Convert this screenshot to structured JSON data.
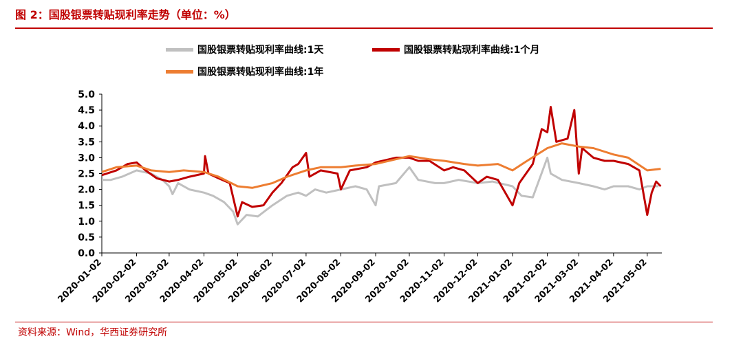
{
  "figure": {
    "title": "图 2：国股银票转贴现利率走势（单位：%）",
    "source": "资料来源：Wind，华西证券研究所"
  },
  "chart_data": {
    "type": "line",
    "title": "",
    "xlabel": "",
    "ylabel": "",
    "ylim": [
      0.0,
      5.0
    ],
    "yticks": [
      "0.0",
      "0.5",
      "1.0",
      "1.5",
      "2.0",
      "2.5",
      "3.0",
      "3.5",
      "4.0",
      "4.5",
      "5.0"
    ],
    "xticks": [
      "2020-01-02",
      "2020-02-02",
      "2020-03-02",
      "2020-04-02",
      "2020-05-02",
      "2020-06-02",
      "2020-07-02",
      "2020-08-02",
      "2020-09-02",
      "2020-10-02",
      "2020-11-02",
      "2020-12-02",
      "2021-01-02",
      "2021-02-02",
      "2021-03-02",
      "2021-04-02",
      "2021-05-02"
    ],
    "legend_position": "top-left",
    "grid": false,
    "series": [
      {
        "name": "国股银票转贴现利率曲线:1天",
        "color": "#c0c0c0",
        "points": [
          [
            "2020-01-02",
            2.3
          ],
          [
            "2020-01-10",
            2.3
          ],
          [
            "2020-01-20",
            2.4
          ],
          [
            "2020-02-02",
            2.6
          ],
          [
            "2020-02-15",
            2.5
          ],
          [
            "2020-02-25",
            2.3
          ],
          [
            "2020-03-02",
            2.1
          ],
          [
            "2020-03-05",
            1.85
          ],
          [
            "2020-03-10",
            2.2
          ],
          [
            "2020-03-20",
            2.0
          ],
          [
            "2020-04-02",
            1.9
          ],
          [
            "2020-04-10",
            1.8
          ],
          [
            "2020-04-20",
            1.6
          ],
          [
            "2020-04-28",
            1.3
          ],
          [
            "2020-05-02",
            0.9
          ],
          [
            "2020-05-10",
            1.2
          ],
          [
            "2020-05-20",
            1.15
          ],
          [
            "2020-06-02",
            1.5
          ],
          [
            "2020-06-15",
            1.8
          ],
          [
            "2020-06-25",
            1.9
          ],
          [
            "2020-07-02",
            1.8
          ],
          [
            "2020-07-10",
            2.0
          ],
          [
            "2020-07-20",
            1.9
          ],
          [
            "2020-08-02",
            2.0
          ],
          [
            "2020-08-15",
            2.1
          ],
          [
            "2020-08-25",
            2.0
          ],
          [
            "2020-09-02",
            1.5
          ],
          [
            "2020-09-05",
            2.1
          ],
          [
            "2020-09-20",
            2.2
          ],
          [
            "2020-10-02",
            2.7
          ],
          [
            "2020-10-10",
            2.3
          ],
          [
            "2020-10-25",
            2.2
          ],
          [
            "2020-11-02",
            2.2
          ],
          [
            "2020-11-15",
            2.3
          ],
          [
            "2020-12-02",
            2.2
          ],
          [
            "2020-12-15",
            2.25
          ],
          [
            "2021-01-02",
            2.1
          ],
          [
            "2021-01-10",
            1.8
          ],
          [
            "2021-01-20",
            1.75
          ],
          [
            "2021-02-02",
            3.0
          ],
          [
            "2021-02-05",
            2.5
          ],
          [
            "2021-02-15",
            2.3
          ],
          [
            "2021-03-02",
            2.2
          ],
          [
            "2021-03-15",
            2.1
          ],
          [
            "2021-03-25",
            2.0
          ],
          [
            "2021-04-02",
            2.1
          ],
          [
            "2021-04-15",
            2.1
          ],
          [
            "2021-04-25",
            2.0
          ],
          [
            "2021-05-02",
            2.1
          ],
          [
            "2021-05-12",
            2.1
          ]
        ]
      },
      {
        "name": "国股银票转贴现利率曲线:1个月",
        "color": "#c00000",
        "points": [
          [
            "2020-01-02",
            2.45
          ],
          [
            "2020-01-15",
            2.6
          ],
          [
            "2020-01-25",
            2.8
          ],
          [
            "2020-02-02",
            2.85
          ],
          [
            "2020-02-10",
            2.6
          ],
          [
            "2020-02-20",
            2.35
          ],
          [
            "2020-03-02",
            2.25
          ],
          [
            "2020-03-10",
            2.3
          ],
          [
            "2020-03-20",
            2.4
          ],
          [
            "2020-04-02",
            2.5
          ],
          [
            "2020-04-03",
            3.05
          ],
          [
            "2020-04-06",
            2.5
          ],
          [
            "2020-04-15",
            2.35
          ],
          [
            "2020-04-25",
            2.2
          ],
          [
            "2020-05-02",
            1.15
          ],
          [
            "2020-05-06",
            1.6
          ],
          [
            "2020-05-15",
            1.45
          ],
          [
            "2020-05-25",
            1.5
          ],
          [
            "2020-06-02",
            1.9
          ],
          [
            "2020-06-10",
            2.2
          ],
          [
            "2020-06-20",
            2.7
          ],
          [
            "2020-06-25",
            2.8
          ],
          [
            "2020-07-02",
            3.15
          ],
          [
            "2020-07-05",
            2.4
          ],
          [
            "2020-07-15",
            2.6
          ],
          [
            "2020-07-30",
            2.5
          ],
          [
            "2020-08-02",
            2.0
          ],
          [
            "2020-08-10",
            2.6
          ],
          [
            "2020-08-25",
            2.7
          ],
          [
            "2020-09-02",
            2.85
          ],
          [
            "2020-09-20",
            3.0
          ],
          [
            "2020-10-02",
            3.0
          ],
          [
            "2020-10-10",
            2.9
          ],
          [
            "2020-10-20",
            2.9
          ],
          [
            "2020-11-02",
            2.6
          ],
          [
            "2020-11-10",
            2.7
          ],
          [
            "2020-11-20",
            2.6
          ],
          [
            "2020-12-02",
            2.2
          ],
          [
            "2020-12-10",
            2.4
          ],
          [
            "2020-12-20",
            2.3
          ],
          [
            "2021-01-02",
            1.5
          ],
          [
            "2021-01-08",
            2.2
          ],
          [
            "2021-01-20",
            2.8
          ],
          [
            "2021-01-28",
            3.9
          ],
          [
            "2021-02-02",
            3.8
          ],
          [
            "2021-02-05",
            4.6
          ],
          [
            "2021-02-10",
            3.5
          ],
          [
            "2021-02-20",
            3.6
          ],
          [
            "2021-02-26",
            4.5
          ],
          [
            "2021-03-02",
            2.5
          ],
          [
            "2021-03-05",
            3.3
          ],
          [
            "2021-03-15",
            3.0
          ],
          [
            "2021-03-25",
            2.9
          ],
          [
            "2021-04-02",
            2.9
          ],
          [
            "2021-04-15",
            2.8
          ],
          [
            "2021-04-25",
            2.6
          ],
          [
            "2021-05-02",
            1.2
          ],
          [
            "2021-05-06",
            1.9
          ],
          [
            "2021-05-10",
            2.25
          ],
          [
            "2021-05-14",
            2.1
          ]
        ]
      },
      {
        "name": "国股银票转贴现利率曲线:1年",
        "color": "#ed7d31",
        "points": [
          [
            "2020-01-02",
            2.55
          ],
          [
            "2020-01-15",
            2.7
          ],
          [
            "2020-02-02",
            2.75
          ],
          [
            "2020-02-15",
            2.6
          ],
          [
            "2020-03-02",
            2.55
          ],
          [
            "2020-03-15",
            2.6
          ],
          [
            "2020-04-02",
            2.55
          ],
          [
            "2020-04-15",
            2.4
          ],
          [
            "2020-05-02",
            2.1
          ],
          [
            "2020-05-15",
            2.05
          ],
          [
            "2020-06-02",
            2.2
          ],
          [
            "2020-06-15",
            2.4
          ],
          [
            "2020-07-02",
            2.6
          ],
          [
            "2020-07-15",
            2.7
          ],
          [
            "2020-08-02",
            2.7
          ],
          [
            "2020-08-15",
            2.75
          ],
          [
            "2020-09-02",
            2.8
          ],
          [
            "2020-09-20",
            2.95
          ],
          [
            "2020-10-02",
            3.05
          ],
          [
            "2020-10-20",
            2.95
          ],
          [
            "2020-11-02",
            2.9
          ],
          [
            "2020-11-20",
            2.8
          ],
          [
            "2020-12-02",
            2.75
          ],
          [
            "2020-12-20",
            2.8
          ],
          [
            "2021-01-02",
            2.6
          ],
          [
            "2021-01-15",
            2.9
          ],
          [
            "2021-02-02",
            3.3
          ],
          [
            "2021-02-15",
            3.45
          ],
          [
            "2021-03-02",
            3.35
          ],
          [
            "2021-03-15",
            3.3
          ],
          [
            "2021-04-02",
            3.1
          ],
          [
            "2021-04-15",
            3.0
          ],
          [
            "2021-05-02",
            2.6
          ],
          [
            "2021-05-14",
            2.65
          ]
        ]
      }
    ]
  }
}
